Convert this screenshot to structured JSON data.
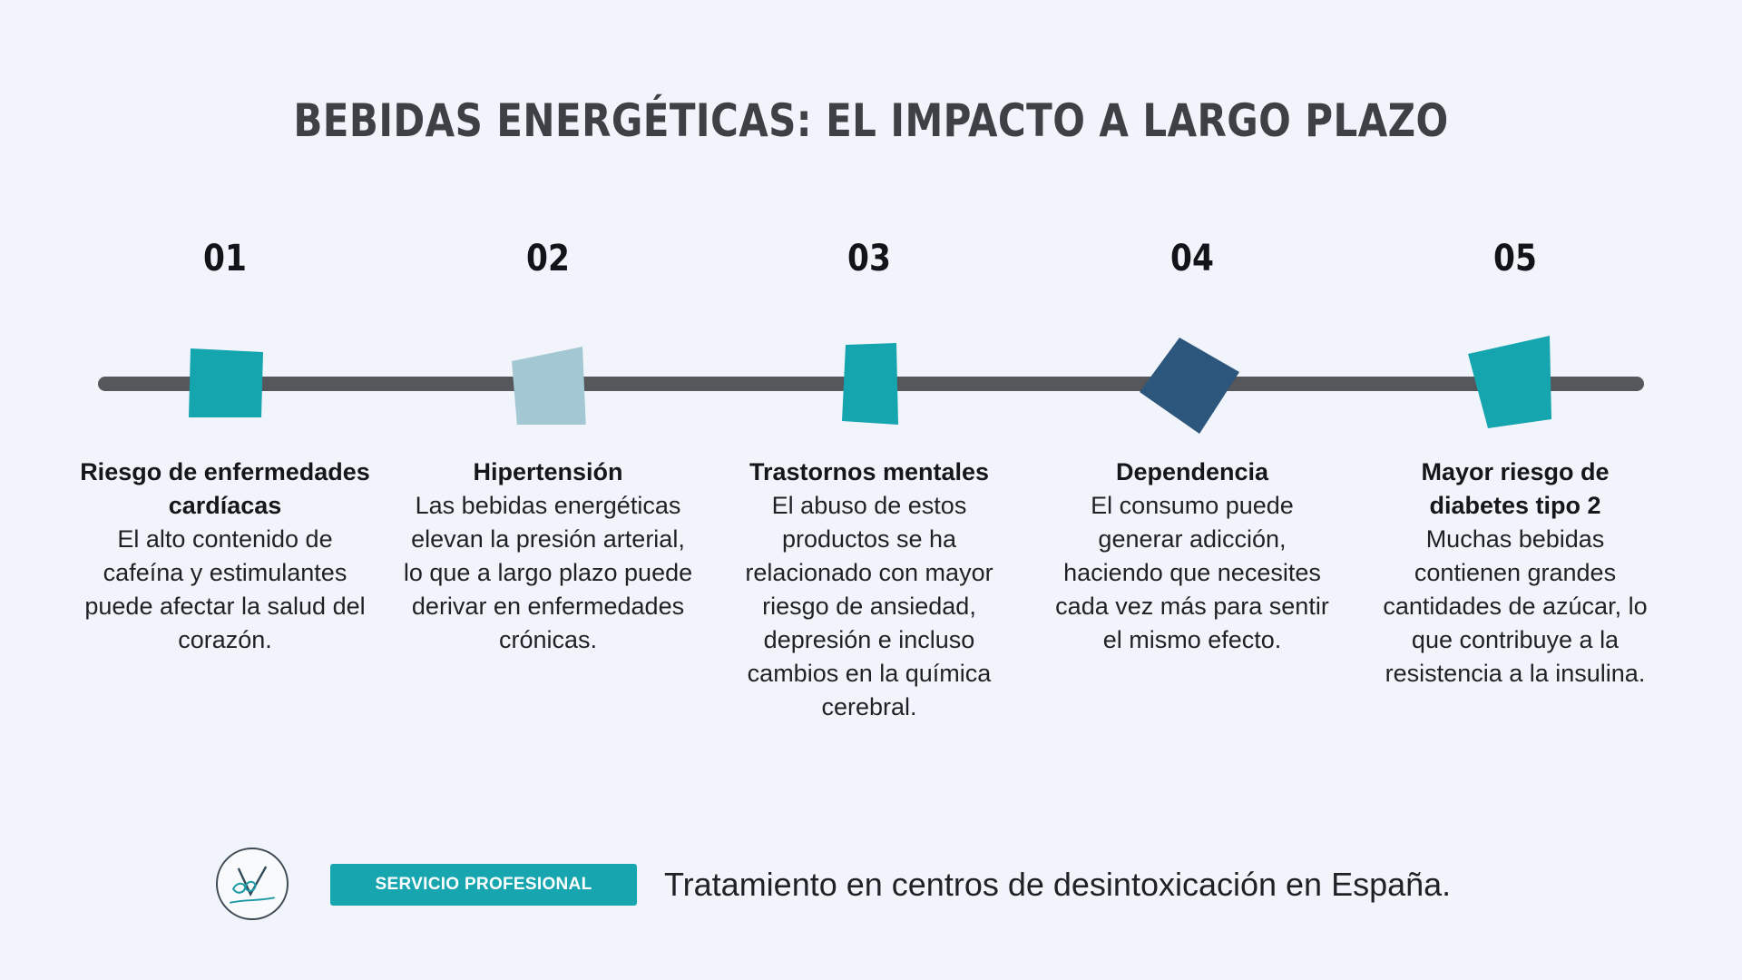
{
  "title": "BEBIDAS ENERGÉTICAS: EL IMPACTO A LARGO PLAZO",
  "steps": [
    {
      "number": "01",
      "title": "Riesgo de enfermedades cardíacas",
      "description": "El alto contenido de cafeína y estimulantes puede afectar la salud del corazón.",
      "marker_color": "#15a5af"
    },
    {
      "number": "02",
      "title": "Hipertensión",
      "description": "Las bebidas energéticas elevan la presión arterial, lo que a largo plazo puede derivar en enfermedades crónicas.",
      "marker_color": "#a3c8d3"
    },
    {
      "number": "03",
      "title": "Trastornos mentales",
      "description": "El abuso de estos productos se ha relacionado con mayor riesgo de ansiedad, depresión e incluso cambios en la química cerebral.",
      "marker_color": "#15a5af"
    },
    {
      "number": "04",
      "title": "Dependencia",
      "description": "El consumo puede generar adicción, haciendo que necesites cada vez más para sentir el mismo efecto.",
      "marker_color": "#2d567c"
    },
    {
      "number": "05",
      "title": "Mayor riesgo de diabetes tipo 2",
      "description": "Muchas bebidas contienen grandes cantidades de azúcar, lo que contribuye a la resistencia a la insulina.",
      "marker_color": "#15a5af"
    }
  ],
  "footer": {
    "badge": "SERVICIO PROFESIONAL",
    "tagline": "Tratamiento en centros de desintoxicación en España."
  },
  "colors": {
    "background": "#f1f4fb",
    "timeline": "#55575a",
    "accent": "#17a6b0"
  }
}
